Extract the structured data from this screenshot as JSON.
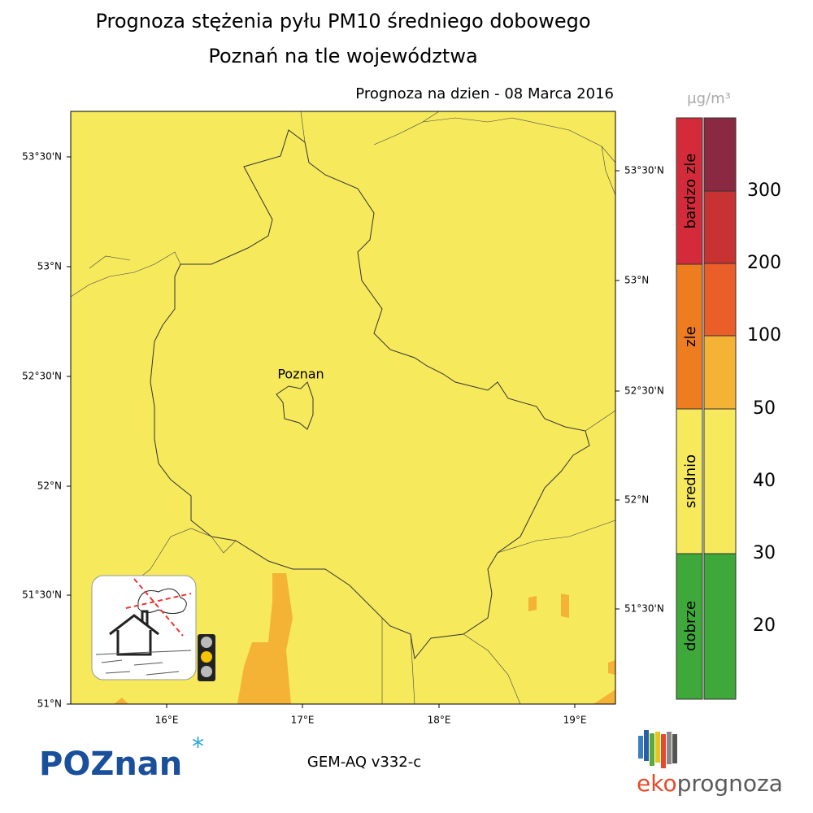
{
  "header": {
    "title": "Prognoza stężenia pyłu PM10 średniego dobowego",
    "subtitle": "Poznań na tle województwa",
    "date": "Prognoza na dzien -  08 Marca 2016"
  },
  "map": {
    "city": "Poznan",
    "lat_left": [
      "53°30'N",
      "53°N",
      "52°30'N",
      "52°N",
      "51°30'N",
      "51°N"
    ],
    "lat_right": [
      "53°30'N",
      "53°N",
      "52°30'N",
      "52°N",
      "51°30'N"
    ],
    "lon": [
      "16°E",
      "17°E",
      "18°E",
      "19°E"
    ]
  },
  "legend": {
    "unit": "μg/m³",
    "categories": [
      "bardzo zle",
      "zle",
      "srednio",
      "dobrze"
    ],
    "levels": [
      300,
      200,
      100,
      50,
      40,
      30,
      20
    ]
  },
  "footer": {
    "logo_left": "POZnan",
    "model": "GEM-AQ v332-c",
    "logo_right": [
      "eko",
      "prognoza"
    ]
  }
}
